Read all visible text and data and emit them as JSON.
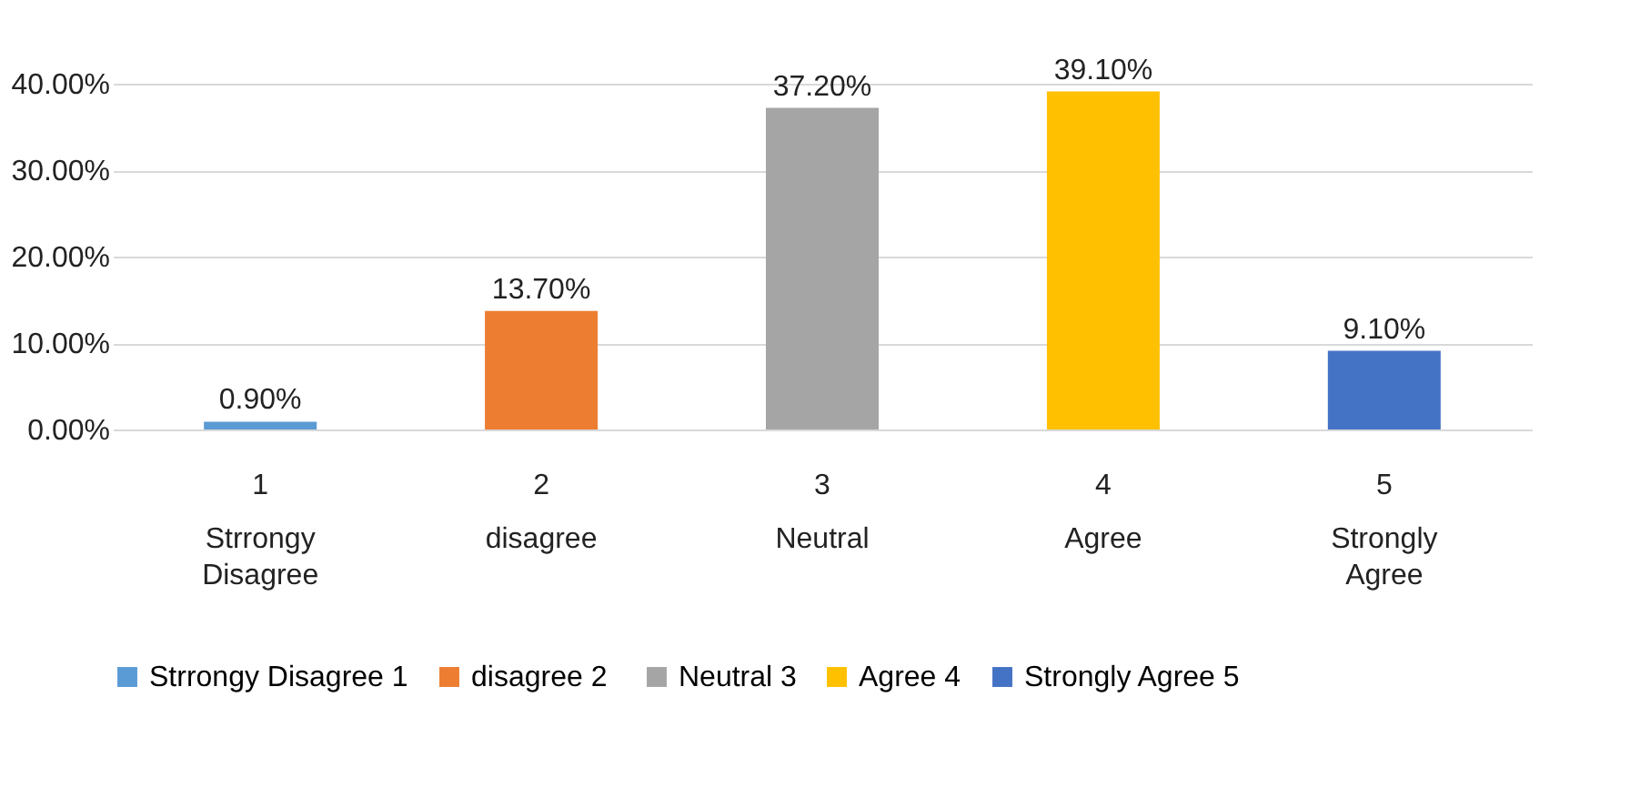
{
  "chart_data": {
    "type": "bar",
    "categories": [
      "1",
      "2",
      "3",
      "4",
      "5"
    ],
    "annotations": [
      "Strrongy Disagree",
      "disagree",
      "Neutral",
      "Agree",
      "Strongly Agree"
    ],
    "series": [
      {
        "name": "Strrongy Disagree 1",
        "color": "#5b9bd5",
        "values": [
          0.9,
          null,
          null,
          null,
          null
        ],
        "value_labels": [
          "0.90%",
          null,
          null,
          null,
          null
        ]
      },
      {
        "name": "disagree  2",
        "color": "#ed7d31",
        "values": [
          null,
          13.7,
          null,
          null,
          null
        ],
        "value_labels": [
          null,
          "13.70%",
          null,
          null,
          null
        ]
      },
      {
        "name": "Neutral 3",
        "color": "#a5a5a5",
        "values": [
          null,
          null,
          37.2,
          null,
          null
        ],
        "value_labels": [
          null,
          null,
          "37.20%",
          null,
          null
        ]
      },
      {
        "name": "Agree 4",
        "color": "#ffc000",
        "values": [
          null,
          null,
          null,
          39.1,
          null
        ],
        "value_labels": [
          null,
          null,
          null,
          "39.10%",
          null
        ]
      },
      {
        "name": "Strongly Agree 5",
        "color": "#4472c4",
        "values": [
          null,
          null,
          null,
          null,
          9.1
        ],
        "value_labels": [
          null,
          null,
          null,
          null,
          "9.10%"
        ]
      }
    ],
    "ylim": [
      0,
      40
    ],
    "yticks": [
      {
        "value": 0,
        "label": "0.00%"
      },
      {
        "value": 10,
        "label": "10.00%"
      },
      {
        "value": 20,
        "label": "20.00%"
      },
      {
        "value": 30,
        "label": "30.00%"
      },
      {
        "value": 40,
        "label": "40.00%"
      }
    ],
    "grid": "y",
    "legend": "bottom"
  }
}
